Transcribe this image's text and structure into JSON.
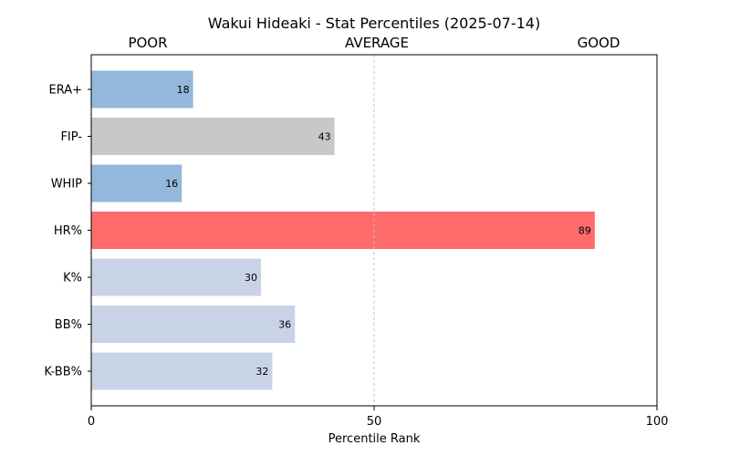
{
  "chart_data": {
    "type": "bar",
    "orientation": "horizontal",
    "title": "Wakui Hideaki - Stat Percentiles (2025-07-14)",
    "xlabel": "Percentile Rank",
    "ylabel": "",
    "xlim": [
      0,
      100
    ],
    "x_ticks": [
      0,
      50,
      100
    ],
    "reference_line": 50,
    "grid": false,
    "scale_labels": [
      "POOR",
      "AVERAGE",
      "GOOD"
    ],
    "categories": [
      "ERA+",
      "FIP-",
      "WHIP",
      "HR%",
      "K%",
      "BB%",
      "K-BB%"
    ],
    "values": [
      18,
      43,
      16,
      89,
      30,
      36,
      32
    ],
    "bar_colors": [
      "#94b7dc",
      "#c8c8c8",
      "#94b7dc",
      "#ff6b6b",
      "#c8d4e6",
      "#c8d4e6",
      "#c8d4e6"
    ]
  }
}
